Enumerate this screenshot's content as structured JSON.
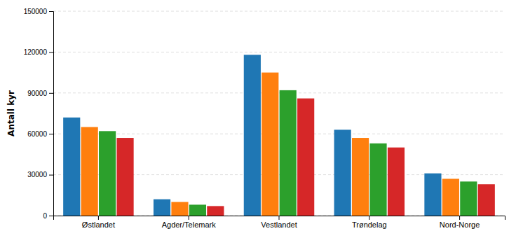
{
  "chart_data": {
    "type": "bar",
    "ylabel": "Antall kyr",
    "categories": [
      "Østlandet",
      "Agder/Telemark",
      "Vestlandet",
      "Trøndelag",
      "Nord-Norge"
    ],
    "series": [
      {
        "values": [
          72000,
          12000,
          118000,
          63000,
          31000
        ]
      },
      {
        "values": [
          65000,
          10000,
          105000,
          57000,
          27000
        ]
      },
      {
        "values": [
          62000,
          8000,
          92000,
          53000,
          25000
        ]
      },
      {
        "values": [
          57000,
          7000,
          86000,
          50000,
          23000
        ]
      }
    ],
    "ylim": [
      0,
      150000
    ],
    "yticks": [
      0,
      30000,
      60000,
      90000,
      120000,
      150000
    ],
    "grid": true
  }
}
